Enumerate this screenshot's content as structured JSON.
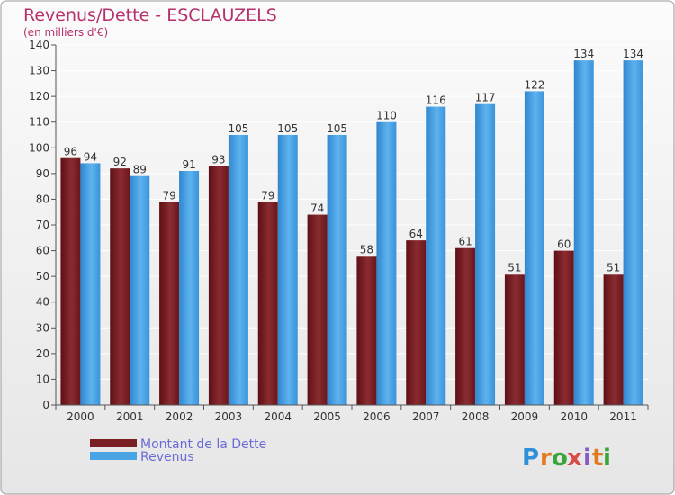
{
  "chart_data": {
    "type": "bar",
    "title": "Revenus/Dette - ESCLAUZELS",
    "subtitle": "(en milliers d'€)",
    "xlabel": "",
    "ylabel": "",
    "ylim": [
      0,
      140
    ],
    "yticks": [
      0,
      10,
      20,
      30,
      40,
      50,
      60,
      70,
      80,
      90,
      100,
      110,
      120,
      130,
      140
    ],
    "grid": true,
    "legend_position": "bottom-left",
    "categories": [
      "2000",
      "2001",
      "2002",
      "2003",
      "2004",
      "2005",
      "2006",
      "2007",
      "2008",
      "2009",
      "2010",
      "2011"
    ],
    "series": [
      {
        "name": "Montant de la Dette",
        "color": "#7a1f24",
        "values": [
          96,
          92,
          79,
          93,
          79,
          74,
          58,
          64,
          61,
          51,
          60,
          51
        ]
      },
      {
        "name": "Revenus",
        "color": "#4aa3e4",
        "values": [
          94,
          89,
          91,
          105,
          105,
          105,
          110,
          116,
          117,
          122,
          134,
          134
        ]
      }
    ]
  },
  "logo": {
    "letters": [
      "P",
      "r",
      "o",
      "x",
      "i",
      "t",
      "i"
    ],
    "colors": [
      "#2f8fd8",
      "#e07a1f",
      "#3aa53a",
      "#d94a4a",
      "#8a5ac8",
      "#e07a1f",
      "#3aa53a"
    ]
  }
}
